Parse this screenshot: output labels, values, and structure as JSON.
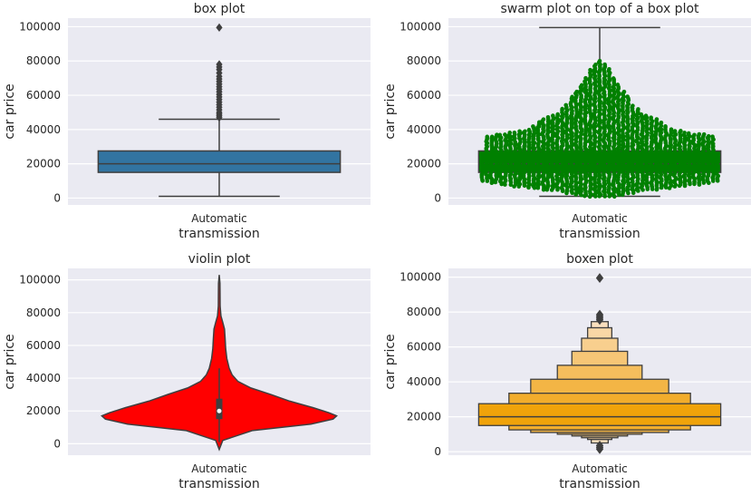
{
  "chart_data": [
    {
      "type": "box",
      "title": "box plot",
      "xlabel": "transmission",
      "ylabel": "car price",
      "categories": [
        "Automatic"
      ],
      "yticks": [
        0,
        20000,
        40000,
        60000,
        80000,
        100000
      ],
      "ylim": [
        -4000,
        105000
      ],
      "grid": true,
      "color": "#3274a1",
      "box": {
        "whisker_low": 1000,
        "q1": 15000,
        "median": 20000,
        "q3": 27500,
        "whisker_high": 46000
      },
      "outliers": [
        47000,
        48000,
        49000,
        50000,
        51500,
        53000,
        54500,
        56000,
        57500,
        59000,
        60500,
        62000,
        63500,
        65000,
        66500,
        68000,
        69500,
        71000,
        73000,
        75000,
        76500,
        78000,
        99500
      ]
    },
    {
      "type": "swarm+box",
      "title": "swarm plot on top of a box plot",
      "xlabel": "transmission",
      "ylabel": "car price",
      "categories": [
        "Automatic"
      ],
      "yticks": [
        0,
        20000,
        40000,
        60000,
        80000,
        100000
      ],
      "ylim": [
        -4000,
        105000
      ],
      "grid": true,
      "color": "#008000",
      "box": {
        "whisker_low": 1000,
        "q1": 15000,
        "median": 20000,
        "q3": 27500,
        "whisker_high": 99500
      },
      "swarm_density": [
        {
          "y": 1000,
          "halfwidth": 0.15
        },
        {
          "y": 4000,
          "halfwidth": 0.35
        },
        {
          "y": 8000,
          "halfwidth": 0.85
        },
        {
          "y": 10000,
          "halfwidth": 1.0
        },
        {
          "y": 20000,
          "halfwidth": 1.0
        },
        {
          "y": 30000,
          "halfwidth": 0.95
        },
        {
          "y": 36000,
          "halfwidth": 0.95
        },
        {
          "y": 40000,
          "halfwidth": 0.6
        },
        {
          "y": 45000,
          "halfwidth": 0.5
        },
        {
          "y": 50000,
          "halfwidth": 0.35
        },
        {
          "y": 55000,
          "halfwidth": 0.27
        },
        {
          "y": 60000,
          "halfwidth": 0.23
        },
        {
          "y": 65000,
          "halfwidth": 0.17
        },
        {
          "y": 70000,
          "halfwidth": 0.12
        },
        {
          "y": 75000,
          "halfwidth": 0.09
        },
        {
          "y": 78000,
          "halfwidth": 0.05
        },
        {
          "y": 80000,
          "halfwidth": 0.0
        }
      ]
    },
    {
      "type": "violin",
      "title": "violin plot",
      "xlabel": "transmission",
      "ylabel": "car price",
      "categories": [
        "Automatic"
      ],
      "yticks": [
        0,
        20000,
        40000,
        60000,
        80000,
        100000
      ],
      "ylim": [
        -7000,
        107000
      ],
      "grid": true,
      "color": "#ff0000",
      "box": {
        "whisker_low": 1000,
        "q1": 15000,
        "median": 20000,
        "q3": 27500,
        "whisker_high": 46000
      },
      "density": [
        {
          "y": -3500,
          "width": 0.0
        },
        {
          "y": 2000,
          "width": 0.03
        },
        {
          "y": 8000,
          "width": 0.28
        },
        {
          "y": 12000,
          "width": 0.78
        },
        {
          "y": 15000,
          "width": 0.97
        },
        {
          "y": 17000,
          "width": 1.0
        },
        {
          "y": 19000,
          "width": 0.93
        },
        {
          "y": 22000,
          "width": 0.8
        },
        {
          "y": 26000,
          "width": 0.6
        },
        {
          "y": 30000,
          "width": 0.44
        },
        {
          "y": 34000,
          "width": 0.27
        },
        {
          "y": 38000,
          "width": 0.16
        },
        {
          "y": 42000,
          "width": 0.11
        },
        {
          "y": 46000,
          "width": 0.085
        },
        {
          "y": 52000,
          "width": 0.065
        },
        {
          "y": 58000,
          "width": 0.055
        },
        {
          "y": 64000,
          "width": 0.05
        },
        {
          "y": 70000,
          "width": 0.045
        },
        {
          "y": 74000,
          "width": 0.03
        },
        {
          "y": 78000,
          "width": 0.015
        },
        {
          "y": 84000,
          "width": 0.008
        },
        {
          "y": 92000,
          "width": 0.007
        },
        {
          "y": 98000,
          "width": 0.006
        },
        {
          "y": 103000,
          "width": 0.0
        }
      ]
    },
    {
      "type": "boxen",
      "title": "boxen plot",
      "xlabel": "transmission",
      "ylabel": "car price",
      "categories": [
        "Automatic"
      ],
      "yticks": [
        0,
        20000,
        40000,
        60000,
        80000,
        100000
      ],
      "ylim": [
        -2000,
        105000
      ],
      "grid": true,
      "color": "#f0a30a",
      "median": 20000,
      "levels": [
        {
          "low": 15000,
          "high": 27500,
          "width": 1.0,
          "color": "#f0a30a"
        },
        {
          "low": 12500,
          "high": 33500,
          "width": 0.75,
          "color": "#f2ad2c"
        },
        {
          "low": 11000,
          "high": 41500,
          "width": 0.57,
          "color": "#f3b545"
        },
        {
          "low": 10000,
          "high": 49500,
          "width": 0.35,
          "color": "#f5be5d"
        },
        {
          "low": 9000,
          "high": 57500,
          "width": 0.23,
          "color": "#f6c676"
        },
        {
          "low": 8000,
          "high": 65000,
          "width": 0.15,
          "color": "#f8cf8e"
        },
        {
          "low": 7000,
          "high": 71000,
          "width": 0.1,
          "color": "#f9d7a6"
        },
        {
          "low": 5000,
          "high": 74500,
          "width": 0.07,
          "color": "#fae0be"
        }
      ],
      "outliers": [
        1500,
        2500,
        3500,
        75500,
        76500,
        77500,
        78500,
        99500
      ]
    }
  ]
}
